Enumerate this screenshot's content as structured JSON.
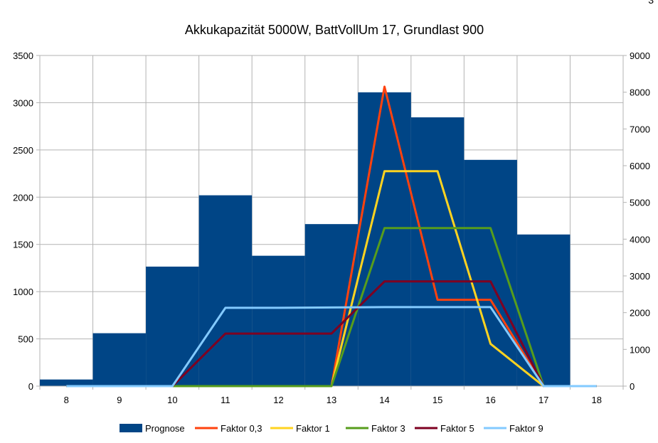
{
  "corner_mark": "3",
  "chart_data": {
    "type": "bar",
    "title": "Akkukapazität 5000W, BattVollUm 17, Grundlast 900",
    "xlabel": "",
    "ylabel": "",
    "categories": [
      "8",
      "9",
      "10",
      "11",
      "12",
      "13",
      "14",
      "15",
      "16",
      "17",
      "18"
    ],
    "ylim": [
      0,
      3500
    ],
    "y_ticks": [
      "0",
      "500",
      "1000",
      "1500",
      "2000",
      "2500",
      "3000",
      "3500"
    ],
    "y2lim": [
      0,
      9000
    ],
    "y2_ticks": [
      "0",
      "1000",
      "2000",
      "3000",
      "4000",
      "5000",
      "6000",
      "7000",
      "8000",
      "9000"
    ],
    "grid": true,
    "legend_position": "bottom",
    "bar_series": {
      "name": "Prognose",
      "color": "#004586",
      "axis": "left",
      "values": [
        70,
        560,
        1265,
        2020,
        1380,
        1715,
        3110,
        2845,
        2395,
        1605,
        0
      ]
    },
    "line_series": [
      {
        "name": "Faktor 0,3",
        "color": "#ff420e",
        "axis": "right",
        "values": [
          0,
          0,
          0,
          0,
          0,
          0,
          8150,
          2350,
          2350,
          0,
          0
        ]
      },
      {
        "name": "Faktor 1",
        "color": "#ffd320",
        "axis": "right",
        "values": [
          0,
          0,
          0,
          0,
          0,
          0,
          5850,
          5850,
          1150,
          0,
          0
        ]
      },
      {
        "name": "Faktor 3",
        "color": "#579d1c",
        "axis": "right",
        "values": [
          0,
          0,
          0,
          0,
          0,
          0,
          4300,
          4300,
          4300,
          0,
          0
        ]
      },
      {
        "name": "Faktor 5",
        "color": "#7e0021",
        "axis": "right",
        "values": [
          0,
          0,
          0,
          1430,
          1430,
          1430,
          2850,
          2850,
          2850,
          0,
          0
        ]
      },
      {
        "name": "Faktor 9",
        "color": "#83caff",
        "axis": "right",
        "values": [
          0,
          0,
          0,
          2130,
          2130,
          2140,
          2150,
          2150,
          2150,
          0,
          0
        ]
      }
    ]
  }
}
